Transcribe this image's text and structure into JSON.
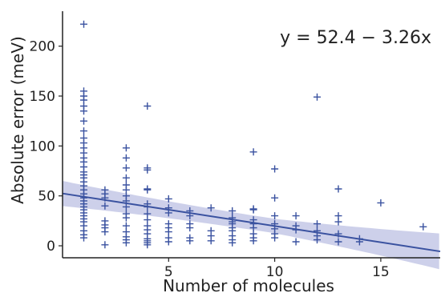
{
  "chart_data": {
    "type": "scatter",
    "title": "",
    "xlabel": "Number of molecules",
    "ylabel": "Absolute error (meV)",
    "xlim": [
      0.0,
      17.8
    ],
    "ylim": [
      -12,
      235
    ],
    "xticks": [
      5,
      10,
      15
    ],
    "yticks": [
      0,
      50,
      100,
      150,
      200
    ],
    "grid": false,
    "marker": "plus",
    "colors": {
      "points": "#3a52a0",
      "fit_line": "#3a52a0",
      "ci_band": "#c4c8e6",
      "axes": "#222222"
    },
    "annotation": "y = 52.4 − 3.26x",
    "fit": {
      "intercept": 52.4,
      "slope": -3.26,
      "ci_half_width_at_x0": 9,
      "ci_half_width_at_x10": 7,
      "ci_half_width_at_x17": 12
    },
    "series": [
      {
        "points": [
          [
            1,
            222
          ],
          [
            1,
            155
          ],
          [
            1,
            150
          ],
          [
            1,
            146
          ],
          [
            1,
            140
          ],
          [
            1,
            135
          ],
          [
            1,
            125
          ],
          [
            1,
            115
          ],
          [
            1,
            108
          ],
          [
            1,
            103
          ],
          [
            1,
            98
          ],
          [
            1,
            93
          ],
          [
            1,
            88
          ],
          [
            1,
            84
          ],
          [
            1,
            79
          ],
          [
            1,
            74
          ],
          [
            1,
            71
          ],
          [
            1,
            68
          ],
          [
            1,
            64
          ],
          [
            1,
            60
          ],
          [
            1,
            56
          ],
          [
            1,
            52
          ],
          [
            1,
            48
          ],
          [
            1,
            45
          ],
          [
            1,
            42
          ],
          [
            1,
            39
          ],
          [
            1,
            36
          ],
          [
            1,
            33
          ],
          [
            1,
            30
          ],
          [
            1,
            27
          ],
          [
            1,
            24
          ],
          [
            1,
            20
          ],
          [
            1,
            15
          ],
          [
            1,
            11
          ],
          [
            1,
            8
          ],
          [
            2,
            56
          ],
          [
            2,
            52
          ],
          [
            2,
            48
          ],
          [
            2,
            40
          ],
          [
            2,
            25
          ],
          [
            2,
            21
          ],
          [
            2,
            18
          ],
          [
            2,
            14
          ],
          [
            2,
            1
          ],
          [
            3,
            98
          ],
          [
            3,
            88
          ],
          [
            3,
            78
          ],
          [
            3,
            68
          ],
          [
            3,
            61
          ],
          [
            3,
            56
          ],
          [
            3,
            50
          ],
          [
            3,
            45
          ],
          [
            3,
            39
          ],
          [
            3,
            32
          ],
          [
            3,
            28
          ],
          [
            3,
            20
          ],
          [
            3,
            14
          ],
          [
            3,
            9
          ],
          [
            3,
            6
          ],
          [
            3,
            3
          ],
          [
            4,
            140
          ],
          [
            4,
            78
          ],
          [
            4,
            76
          ],
          [
            4,
            57
          ],
          [
            4,
            56
          ],
          [
            4,
            42
          ],
          [
            4,
            39
          ],
          [
            4,
            32
          ],
          [
            4,
            26
          ],
          [
            4,
            20
          ],
          [
            4,
            16
          ],
          [
            4,
            12
          ],
          [
            4,
            7
          ],
          [
            4,
            5
          ],
          [
            4,
            3
          ],
          [
            4,
            1
          ],
          [
            5,
            47
          ],
          [
            5,
            38
          ],
          [
            5,
            33
          ],
          [
            5,
            22
          ],
          [
            5,
            18
          ],
          [
            5,
            14
          ],
          [
            5,
            8
          ],
          [
            5,
            4
          ],
          [
            6,
            35
          ],
          [
            6,
            30
          ],
          [
            6,
            22
          ],
          [
            6,
            18
          ],
          [
            6,
            8
          ],
          [
            6,
            5
          ],
          [
            7,
            38
          ],
          [
            7,
            15
          ],
          [
            7,
            10
          ],
          [
            7,
            5
          ],
          [
            8,
            35
          ],
          [
            8,
            28
          ],
          [
            8,
            24
          ],
          [
            8,
            22
          ],
          [
            8,
            18
          ],
          [
            8,
            15
          ],
          [
            8,
            10
          ],
          [
            8,
            6
          ],
          [
            8,
            3
          ],
          [
            9,
            94
          ],
          [
            9,
            37
          ],
          [
            9,
            36
          ],
          [
            9,
            26
          ],
          [
            9,
            22
          ],
          [
            9,
            18
          ],
          [
            9,
            12
          ],
          [
            9,
            8
          ],
          [
            9,
            5
          ],
          [
            10,
            77
          ],
          [
            10,
            48
          ],
          [
            10,
            30
          ],
          [
            10,
            22
          ],
          [
            10,
            17
          ],
          [
            10,
            12
          ],
          [
            10,
            8
          ],
          [
            11,
            30
          ],
          [
            11,
            20
          ],
          [
            11,
            16
          ],
          [
            11,
            4
          ],
          [
            12,
            149
          ],
          [
            12,
            22
          ],
          [
            12,
            15
          ],
          [
            12,
            10
          ],
          [
            12,
            6
          ],
          [
            13,
            57
          ],
          [
            13,
            30
          ],
          [
            13,
            24
          ],
          [
            13,
            12
          ],
          [
            13,
            4
          ],
          [
            14,
            7
          ],
          [
            14,
            4
          ],
          [
            15,
            43
          ],
          [
            17,
            19
          ]
        ]
      }
    ]
  }
}
